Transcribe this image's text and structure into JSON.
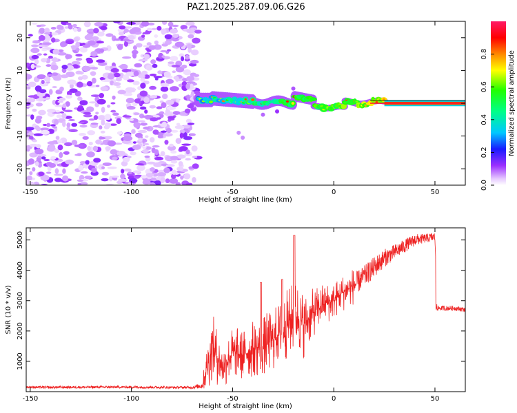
{
  "chart_data": [
    {
      "type": "heatmap",
      "title": "PAZ1.2025.287.09.06.G26",
      "xlabel": "Height of straight line (km)",
      "ylabel": "Frequency (Hz)",
      "xlim": [
        -152,
        65
      ],
      "ylim": [
        -25,
        25
      ],
      "xticks": [
        -150,
        -100,
        -50,
        0,
        50
      ],
      "xtick_labels": [
        "-150",
        "-100",
        "-50",
        "0",
        "50"
      ],
      "yticks": [
        -20,
        -10,
        0,
        10,
        20
      ],
      "ytick_labels": [
        "-20",
        "-10",
        "0",
        "10",
        "20"
      ],
      "colorbar": {
        "label": "Normalized spectral amplitude",
        "range": [
          0,
          1
        ],
        "ticks": [
          0.0,
          0.2,
          0.4,
          0.6,
          0.8
        ],
        "tick_labels": [
          "0.0",
          "0.2",
          "0.4",
          "0.6",
          "0.8"
        ]
      },
      "description_regions": [
        {
          "x_range": [
            -152,
            -67
          ],
          "freq_range": [
            -25,
            25
          ],
          "amplitude": "low (0.0-0.2), scattered noise"
        },
        {
          "x_range": [
            -67,
            25
          ],
          "freq_range": [
            -4,
            6
          ],
          "amplitude": "mixed 0.1-0.9, wandering carrier near 0 Hz"
        },
        {
          "x_range": [
            25,
            65
          ],
          "freq_range": [
            -0.5,
            0.5
          ],
          "amplitude": "high (1.0), stable carrier at 0 Hz"
        }
      ]
    },
    {
      "type": "line",
      "title": "",
      "xlabel": "Height of straight line (km)",
      "ylabel": "SNR (10 * v/v)",
      "xlim": [
        -152,
        65
      ],
      "ylim": [
        0,
        5400
      ],
      "xticks": [
        -150,
        -100,
        -50,
        0,
        50
      ],
      "xtick_labels": [
        "-150",
        "-100",
        "-50",
        "0",
        "50"
      ],
      "yticks": [
        1000,
        2000,
        3000,
        4000,
        5000
      ],
      "ytick_labels": [
        "1000",
        "2000",
        "3000",
        "4000",
        "5000"
      ],
      "series": [
        {
          "name": "SNR",
          "color": "#ee2222",
          "x": [
            -152,
            -140,
            -120,
            -100,
            -80,
            -70,
            -65,
            -62,
            -60,
            -55,
            -50,
            -45,
            -40,
            -35,
            -30,
            -25,
            -20,
            -18,
            -15,
            -10,
            -5,
            0,
            5,
            10,
            15,
            20,
            25,
            30,
            35,
            40,
            45,
            50,
            51,
            55,
            60,
            65
          ],
          "y": [
            150,
            140,
            150,
            150,
            140,
            140,
            200,
            1000,
            1500,
            800,
            1300,
            1200,
            1400,
            1500,
            1700,
            2100,
            2400,
            2500,
            2200,
            2600,
            2900,
            3000,
            3300,
            3500,
            3800,
            4100,
            4400,
            4600,
            4800,
            5000,
            5050,
            5100,
            2750,
            2750,
            2750,
            2700
          ],
          "noise_amp": [
            40,
            40,
            40,
            40,
            40,
            40,
            100,
            600,
            700,
            500,
            550,
            550,
            600,
            650,
            650,
            700,
            800,
            800,
            700,
            500,
            450,
            400,
            400,
            400,
            350,
            350,
            300,
            250,
            220,
            200,
            150,
            150,
            80,
            80,
            80,
            80
          ]
        }
      ]
    }
  ]
}
